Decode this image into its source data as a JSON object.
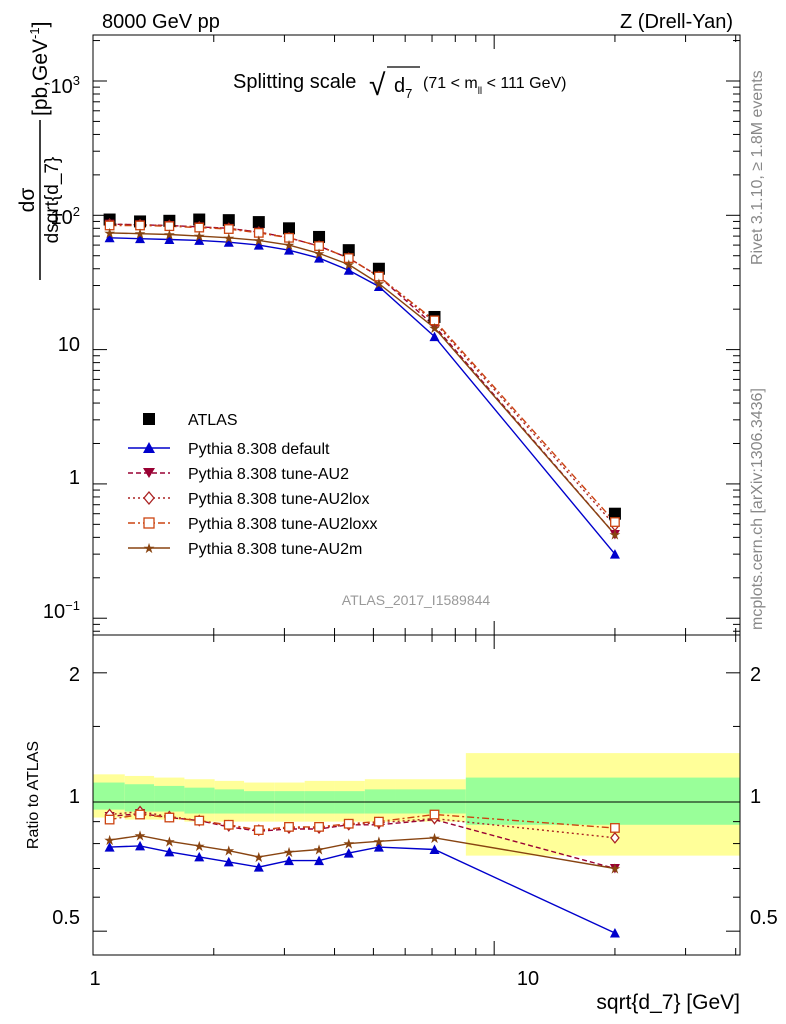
{
  "header": {
    "left": "8000 GeV pp",
    "right": "Z (Drell-Yan)"
  },
  "title": {
    "main": "Splitting scale",
    "sqrt_symbol": "√",
    "d": "d",
    "d_sub": "7",
    "range_pre": "(71 < m",
    "range_sub": "ll",
    "range_post": " < 111 GeV)"
  },
  "ylabel_main": {
    "numerator": "dσ",
    "denominator": "dsqrt{d_7}",
    "units_pre": "[pb,GeV",
    "units_sup": "-1",
    "units_post": "]"
  },
  "ylabel_ratio": "Ratio to ATLAS",
  "xlabel": "sqrt{d_7} [GeV]",
  "side_text_top": "Rivet 3.1.10, ≥ 1.8M events",
  "side_text_bottom": "mcplots.cern.ch [arXiv:1306.3436]",
  "watermark": "ATLAS_2017_I1589844",
  "main_ticks": [
    {
      "label": "10",
      "sup": "3"
    },
    {
      "label": "10",
      "sup": "2"
    },
    {
      "label": "10",
      "sup": ""
    },
    {
      "label": "1",
      "sup": ""
    },
    {
      "label": "10",
      "sup": "−1"
    }
  ],
  "ratio_ticks_left": [
    "2",
    "1",
    "0.5"
  ],
  "ratio_ticks_right": [
    "2",
    "1",
    "0.5"
  ],
  "x_ticks": [
    "1",
    "10"
  ],
  "legend": [
    "ATLAS",
    "Pythia 8.308 default",
    "Pythia 8.308 tune-AU2",
    "Pythia 8.308 tune-AU2lox",
    "Pythia 8.308 tune-AU2loxx",
    "Pythia 8.308 tune-AU2m"
  ],
  "colors": {
    "atlas": "#000000",
    "default": "#0000cc",
    "au2": "#990033",
    "au2lox": "#aa2222",
    "au2loxx": "#cc4411",
    "au2m": "#884411",
    "band_inner": "#99ff99",
    "band_outer": "#ffff99"
  },
  "chart_data": [
    {
      "type": "scatter",
      "panel": "main",
      "xscale": "log",
      "yscale": "log",
      "xlim": [
        1,
        41
      ],
      "ylim": [
        0.075,
        2200
      ],
      "x": [
        1.1,
        1.31,
        1.55,
        1.84,
        2.18,
        2.59,
        3.08,
        3.66,
        4.34,
        5.16,
        7.1,
        20.0
      ],
      "series": [
        {
          "name": "ATLAS",
          "marker": "square",
          "style": "none",
          "values": [
            93,
            90,
            91,
            93,
            92,
            89,
            80,
            69,
            55,
            40,
            17.5,
            0.6
          ]
        },
        {
          "name": "Pythia 8.308 default",
          "marker": "triangle-up",
          "style": "solid",
          "values": [
            68,
            67,
            66,
            65,
            63,
            60,
            55,
            48,
            39,
            29.5,
            12.5,
            0.3
          ]
        },
        {
          "name": "Pythia 8.308 tune-AU2",
          "marker": "triangle-down",
          "style": "dashed",
          "values": [
            86,
            85,
            84,
            82,
            80,
            75,
            68,
            59,
            48,
            35,
            15,
            0.42
          ]
        },
        {
          "name": "Pythia 8.308 tune-AU2lox",
          "marker": "diamond-open",
          "style": "dotted",
          "values": [
            86,
            85,
            84,
            82,
            80,
            75,
            68,
            59,
            48,
            35,
            16,
            0.49
          ]
        },
        {
          "name": "Pythia 8.308 tune-AU2loxx",
          "marker": "square-open",
          "style": "dashdot",
          "values": [
            84,
            84,
            83,
            81,
            79,
            74,
            68,
            59,
            48,
            35,
            16.5,
            0.52
          ]
        },
        {
          "name": "Pythia 8.308 tune-AU2m",
          "marker": "star",
          "style": "solid",
          "values": [
            74,
            73,
            72,
            70,
            68,
            65,
            60,
            52,
            43,
            31,
            14.5,
            0.42
          ]
        }
      ]
    },
    {
      "type": "line",
      "panel": "ratio",
      "xscale": "log",
      "yscale": "log",
      "xlim": [
        1,
        41
      ],
      "ylim": [
        0.44,
        2.45
      ],
      "ylabel": "Ratio to ATLAS",
      "x": [
        1.1,
        1.31,
        1.55,
        1.84,
        2.18,
        2.59,
        3.08,
        3.66,
        4.34,
        5.16,
        7.1,
        20.0
      ],
      "band_edges": [
        1,
        1.2,
        1.42,
        1.69,
        2.01,
        2.38,
        2.83,
        3.37,
        4.0,
        4.76,
        5.66,
        8.5,
        41
      ],
      "band_inner": [
        [
          0.96,
          1.11
        ],
        [
          0.95,
          1.1
        ],
        [
          0.95,
          1.09
        ],
        [
          0.94,
          1.08
        ],
        [
          0.94,
          1.07
        ],
        [
          0.94,
          1.06
        ],
        [
          0.94,
          1.06
        ],
        [
          0.94,
          1.06
        ],
        [
          0.94,
          1.06
        ],
        [
          0.94,
          1.07
        ],
        [
          0.94,
          1.07
        ],
        [
          0.885,
          1.14
        ]
      ],
      "band_outer": [
        [
          0.92,
          1.16
        ],
        [
          0.91,
          1.15
        ],
        [
          0.91,
          1.14
        ],
        [
          0.9,
          1.13
        ],
        [
          0.9,
          1.12
        ],
        [
          0.9,
          1.11
        ],
        [
          0.9,
          1.11
        ],
        [
          0.9,
          1.12
        ],
        [
          0.9,
          1.12
        ],
        [
          0.9,
          1.13
        ],
        [
          0.9,
          1.13
        ],
        [
          0.75,
          1.3
        ]
      ],
      "series": [
        {
          "name": "Pythia 8.308 default",
          "values": [
            0.785,
            0.79,
            0.765,
            0.745,
            0.725,
            0.705,
            0.73,
            0.73,
            0.76,
            0.785,
            0.775,
            0.495
          ]
        },
        {
          "name": "Pythia 8.308 tune-AU2",
          "values": [
            0.925,
            0.94,
            0.92,
            0.905,
            0.875,
            0.855,
            0.865,
            0.865,
            0.885,
            0.885,
            0.91,
            0.7
          ]
        },
        {
          "name": "Pythia 8.308 tune-AU2lox",
          "values": [
            0.935,
            0.95,
            0.925,
            0.905,
            0.88,
            0.86,
            0.87,
            0.87,
            0.885,
            0.895,
            0.915,
            0.825
          ]
        },
        {
          "name": "Pythia 8.308 tune-AU2loxx",
          "values": [
            0.91,
            0.935,
            0.92,
            0.905,
            0.885,
            0.86,
            0.875,
            0.875,
            0.89,
            0.9,
            0.935,
            0.87
          ]
        },
        {
          "name": "Pythia 8.308 tune-AU2m",
          "values": [
            0.815,
            0.835,
            0.81,
            0.79,
            0.77,
            0.745,
            0.765,
            0.775,
            0.8,
            0.81,
            0.825,
            0.7
          ]
        }
      ]
    }
  ]
}
